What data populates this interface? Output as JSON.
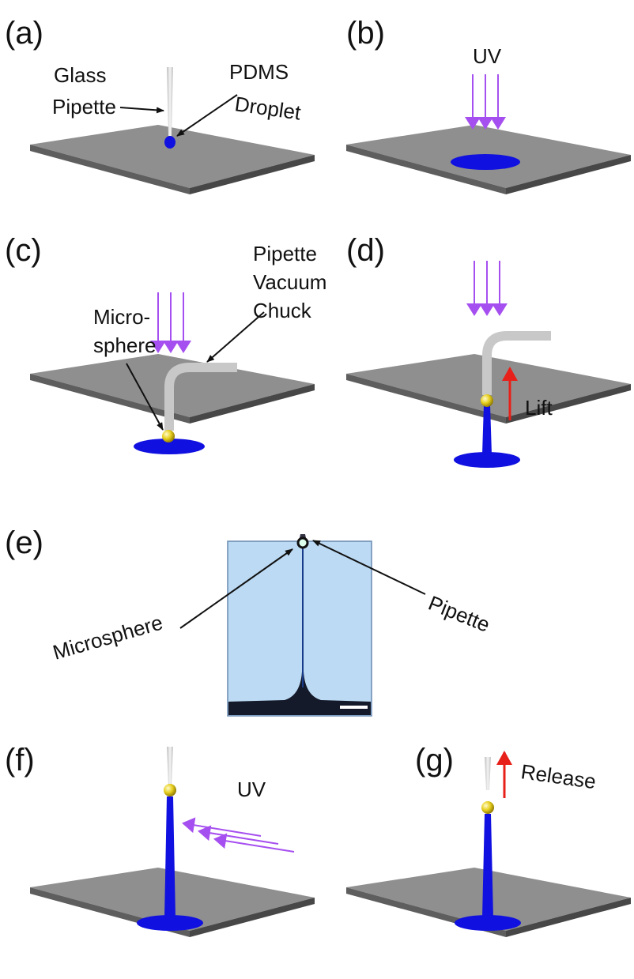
{
  "panels": [
    {
      "label": "(a)",
      "annotations": [
        [
          "Glass",
          "Pipette"
        ],
        [
          "PDMS",
          "Droplet"
        ]
      ]
    },
    {
      "label": "(b)",
      "annotations": [
        [
          "UV"
        ]
      ]
    },
    {
      "label": "(c)",
      "annotations": [
        [
          "Pipette",
          "Vacuum",
          "Chuck"
        ],
        [
          "Micro-",
          "sphere"
        ]
      ]
    },
    {
      "label": "(d)",
      "annotations": [
        [
          "Lift"
        ]
      ]
    },
    {
      "label": "(e)",
      "annotations": [
        [
          "Microsphere"
        ],
        [
          "Pipette"
        ]
      ]
    },
    {
      "label": "(f)",
      "annotations": [
        [
          "UV"
        ]
      ]
    },
    {
      "label": "(g)",
      "annotations": [
        [
          "Release"
        ]
      ]
    }
  ]
}
